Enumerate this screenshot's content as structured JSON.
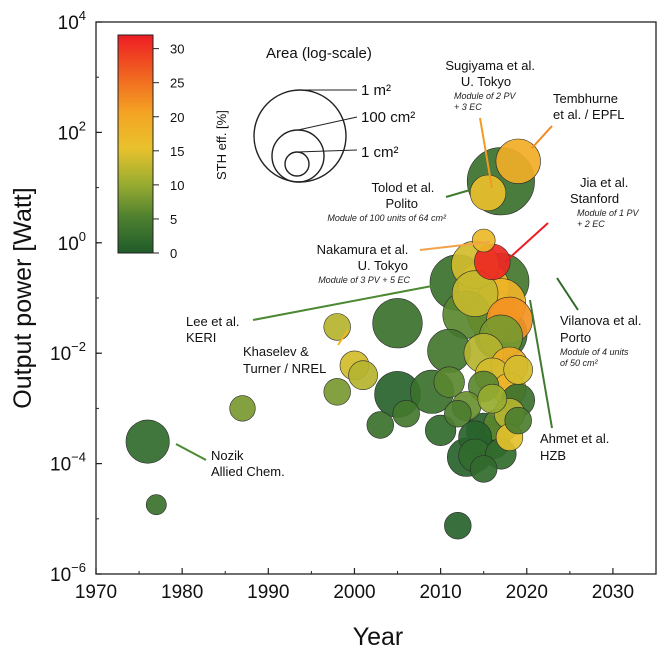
{
  "chart_data": {
    "type": "scatter",
    "x_axis": {
      "label": "Year",
      "range": [
        1970,
        2035
      ],
      "ticks": [
        "1970",
        "1980",
        "1990",
        "2000",
        "2010",
        "2020",
        "2030"
      ]
    },
    "y_axis": {
      "label": "Output power [Watt]",
      "scale": "log",
      "range_exp": [
        -6,
        4
      ],
      "ticks_exp": [
        -6,
        -4,
        -2,
        0,
        2,
        4
      ]
    },
    "colorbar": {
      "label": "STH eff. [%]",
      "min": 0,
      "max": 32,
      "ticks": [
        "0",
        "5",
        "10",
        "15",
        "20",
        "25",
        "30"
      ]
    },
    "size_legend": {
      "title": "Area (log-scale)",
      "items": [
        "1 m²",
        "100 cm²",
        "1 cm²"
      ]
    },
    "grid": false,
    "points": [
      {
        "year": 1976,
        "power": 0.00025,
        "eff": 2,
        "area_cm2": 200
      },
      {
        "year": 1977,
        "power": 1.8e-05,
        "eff": 3,
        "area_cm2": 3
      },
      {
        "year": 1987,
        "power": 0.001,
        "eff": 8,
        "area_cm2": 8
      },
      {
        "year": 1998,
        "power": 0.03,
        "eff": 12,
        "area_cm2": 10
      },
      {
        "year": 1998,
        "power": 0.002,
        "eff": 8,
        "area_cm2": 10
      },
      {
        "year": 2000,
        "power": 0.006,
        "eff": 14,
        "area_cm2": 15
      },
      {
        "year": 2001,
        "power": 0.004,
        "eff": 12,
        "area_cm2": 15
      },
      {
        "year": 2003,
        "power": 0.0005,
        "eff": 3,
        "area_cm2": 10
      },
      {
        "year": 2005,
        "power": 0.035,
        "eff": 3,
        "area_cm2": 600
      },
      {
        "year": 2005,
        "power": 0.0018,
        "eff": 1,
        "area_cm2": 300
      },
      {
        "year": 2006,
        "power": 0.0008,
        "eff": 4,
        "area_cm2": 10
      },
      {
        "year": 2009,
        "power": 0.002,
        "eff": 3,
        "area_cm2": 200
      },
      {
        "year": 2010,
        "power": 0.0004,
        "eff": 2,
        "area_cm2": 20
      },
      {
        "year": 2011,
        "power": 0.011,
        "eff": 4,
        "area_cm2": 200
      },
      {
        "year": 2011,
        "power": 0.003,
        "eff": 6,
        "area_cm2": 20
      },
      {
        "year": 2012,
        "power": 0.19,
        "eff": 3,
        "area_cm2": 1800
      },
      {
        "year": 2012,
        "power": 0.0008,
        "eff": 5,
        "area_cm2": 10
      },
      {
        "year": 2012,
        "power": 7.5e-06,
        "eff": 1,
        "area_cm2": 10
      },
      {
        "year": 2013,
        "power": 0.05,
        "eff": 6,
        "area_cm2": 400
      },
      {
        "year": 2013,
        "power": 0.0011,
        "eff": 7,
        "area_cm2": 15
      },
      {
        "year": 2013,
        "power": 0.00013,
        "eff": 1,
        "area_cm2": 80
      },
      {
        "year": 2014,
        "power": 0.4,
        "eff": 14,
        "area_cm2": 400
      },
      {
        "year": 2014,
        "power": 0.12,
        "eff": 13,
        "area_cm2": 300
      },
      {
        "year": 2014,
        "power": 0.0003,
        "eff": 1,
        "area_cm2": 30
      },
      {
        "year": 2014,
        "power": 0.00014,
        "eff": 2,
        "area_cm2": 30
      },
      {
        "year": 2015,
        "power": 1.1,
        "eff": 17,
        "area_cm2": 5
      },
      {
        "year": 2015,
        "power": 0.16,
        "eff": 16,
        "area_cm2": 700
      },
      {
        "year": 2015,
        "power": 0.01,
        "eff": 12,
        "area_cm2": 100
      },
      {
        "year": 2015,
        "power": 0.0025,
        "eff": 6,
        "area_cm2": 20
      },
      {
        "year": 2015,
        "power": 8e-05,
        "eff": 2,
        "area_cm2": 10
      },
      {
        "year": 2015,
        "power": 0.0004,
        "eff": 1,
        "area_cm2": 40
      },
      {
        "year": 2016,
        "power": 0.45,
        "eff": 31,
        "area_cm2": 50
      },
      {
        "year": 2016,
        "power": 0.05,
        "eff": 16,
        "area_cm2": 600
      },
      {
        "year": 2016,
        "power": 0.004,
        "eff": 14,
        "area_cm2": 40
      },
      {
        "year": 2016,
        "power": 0.0015,
        "eff": 10,
        "area_cm2": 15
      },
      {
        "year": 2016,
        "power": 0.00025,
        "eff": 2,
        "area_cm2": 40
      },
      {
        "year": 2017,
        "power": 0.2,
        "eff": 4,
        "area_cm2": 2000
      },
      {
        "year": 2017,
        "power": 0.022,
        "eff": 3,
        "area_cm2": 1000
      },
      {
        "year": 2017,
        "power": 0.08,
        "eff": 18,
        "area_cm2": 600
      },
      {
        "year": 2017,
        "power": 0.02,
        "eff": 8,
        "area_cm2": 200
      },
      {
        "year": 2017,
        "power": 0.0005,
        "eff": 6,
        "area_cm2": 40
      },
      {
        "year": 2017,
        "power": 0.00015,
        "eff": 2,
        "area_cm2": 20
      },
      {
        "year": 2018,
        "power": 0.04,
        "eff": 22,
        "area_cm2": 300
      },
      {
        "year": 2018,
        "power": 0.006,
        "eff": 19,
        "area_cm2": 60
      },
      {
        "year": 2018,
        "power": 0.0022,
        "eff": 18,
        "area_cm2": 30
      },
      {
        "year": 2018,
        "power": 0.0008,
        "eff": 12,
        "area_cm2": 20
      },
      {
        "year": 2018,
        "power": 0.0003,
        "eff": 15,
        "area_cm2": 10
      },
      {
        "year": 2019,
        "power": 0.005,
        "eff": 14,
        "area_cm2": 15
      },
      {
        "year": 2019,
        "power": 0.0014,
        "eff": 3,
        "area_cm2": 30
      },
      {
        "year": 2019,
        "power": 0.0006,
        "eff": 5,
        "area_cm2": 10
      },
      {
        "year": 2017,
        "power": 13,
        "eff": 3,
        "area_cm2": 15000
      },
      {
        "year": 2015.5,
        "power": 8,
        "eff": 16,
        "area_cm2": 50
      },
      {
        "year": 2019,
        "power": 30,
        "eff": 19,
        "area_cm2": 250
      }
    ],
    "annotations": [
      {
        "lines": [
          "Sugiyama et al.",
          "U. Tokyo"
        ],
        "sub": [
          "Module of 2 PV",
          "+ 3 EC"
        ]
      },
      {
        "lines": [
          "Tembhurne",
          "et al. / EPFL"
        ],
        "sub": []
      },
      {
        "lines": [
          "Tolod et al.",
          "Polito"
        ],
        "sub": [
          "Module of 100 units of 64 cm²"
        ]
      },
      {
        "lines": [
          "Jia et al.",
          "Stanford"
        ],
        "sub": [
          "Module of 1 PV",
          "+ 2 EC"
        ]
      },
      {
        "lines": [
          "Nakamura et al.",
          "U. Tokyo"
        ],
        "sub": [
          "Module of 3 PV + 5 EC"
        ]
      },
      {
        "lines": [
          "Lee et al.",
          "KERI"
        ],
        "sub": []
      },
      {
        "lines": [
          "Khaselev &",
          "Turner / NREL"
        ],
        "sub": []
      },
      {
        "lines": [
          "Vilanova et al.",
          "Porto"
        ],
        "sub": [
          "Module of 4 units",
          "of 50 cm²"
        ]
      },
      {
        "lines": [
          "Ahmet et al.",
          "HZB"
        ],
        "sub": []
      },
      {
        "lines": [
          "Nozik",
          "Allied Chem."
        ],
        "sub": []
      }
    ]
  }
}
